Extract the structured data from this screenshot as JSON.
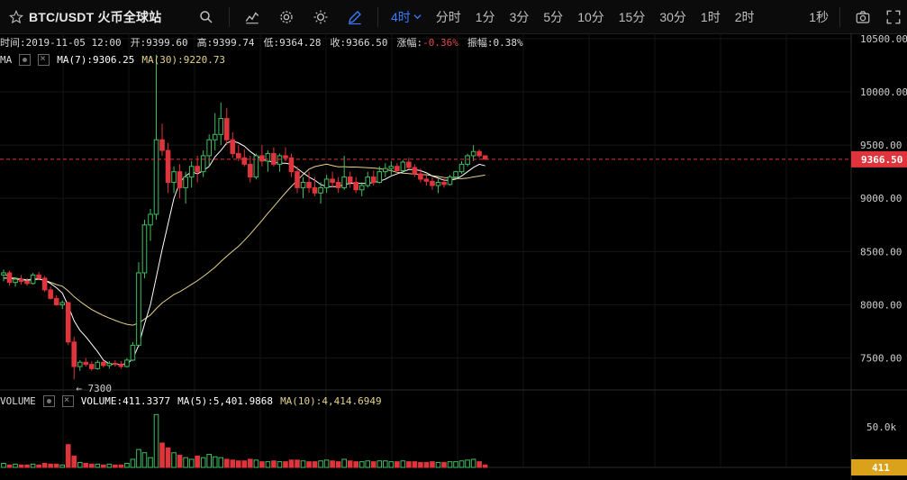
{
  "toolbar": {
    "symbol": "BTC/USDT 火币全球站",
    "active_interval": "4时",
    "intervals": [
      "分时",
      "1分",
      "3分",
      "5分",
      "10分",
      "15分",
      "30分",
      "1时",
      "2时"
    ],
    "right_interval": "1秒",
    "icons": [
      "star-icon",
      "search-icon",
      "indicator-icon",
      "settings-icon",
      "theme-icon",
      "draw-icon",
      "camera-icon",
      "fullscreen-icon"
    ]
  },
  "ohlc": {
    "time": "时间:2019-11-05 12:00",
    "open": "开:9399.60",
    "high": "高:9399.74",
    "low": "低:9364.28",
    "close": "收:9366.50",
    "change_label": "涨幅:",
    "change_value": "-0.36%",
    "amplitude": "振幅:0.38%"
  },
  "ma": {
    "label": "MA",
    "ma7": "MA(7):9306.25",
    "ma30": "MA(30):9220.73"
  },
  "volume": {
    "label": "VOLUME",
    "value": "VOLUME:411.3377",
    "ma5": "MA(5):5,401.9868",
    "ma10": "MA(10):4,414.6949"
  },
  "chart_data": {
    "type": "candlestick",
    "price_ticks": [
      "10500.00",
      "10000.00",
      "9500.00",
      "9000.00",
      "8500.00",
      "8000.00",
      "7500.00"
    ],
    "price_ylim": [
      7200,
      10550
    ],
    "last_price": "9366.50",
    "low_annotation": "← 7300",
    "volume_tick": "50.0k",
    "last_volume": "411",
    "colors": {
      "up": "#3fbf5f",
      "down": "#e0343c",
      "ma7": "#ffffff",
      "ma30": "#e6d28a",
      "last": "#e0343c",
      "vol_badge": "#d9a21a"
    },
    "candles": [
      [
        8280,
        8330,
        8220,
        8300
      ],
      [
        8300,
        8320,
        8180,
        8210
      ],
      [
        8210,
        8260,
        8170,
        8240
      ],
      [
        8240,
        8280,
        8190,
        8220
      ],
      [
        8220,
        8250,
        8180,
        8200
      ],
      [
        8200,
        8300,
        8190,
        8280
      ],
      [
        8280,
        8310,
        8230,
        8250
      ],
      [
        8250,
        8270,
        8120,
        8140
      ],
      [
        8140,
        8170,
        8050,
        8060
      ],
      [
        8060,
        8090,
        7990,
        8000
      ],
      [
        8000,
        8040,
        7960,
        8020
      ],
      [
        8020,
        8030,
        7620,
        7650
      ],
      [
        7650,
        7700,
        7300,
        7420
      ],
      [
        7420,
        7480,
        7380,
        7460
      ],
      [
        7460,
        7500,
        7420,
        7440
      ],
      [
        7440,
        7470,
        7380,
        7400
      ],
      [
        7400,
        7480,
        7390,
        7460
      ],
      [
        7460,
        7480,
        7410,
        7430
      ],
      [
        7430,
        7470,
        7400,
        7450
      ],
      [
        7450,
        7480,
        7420,
        7440
      ],
      [
        7440,
        7470,
        7400,
        7420
      ],
      [
        7420,
        7500,
        7410,
        7480
      ],
      [
        7480,
        7650,
        7470,
        7620
      ],
      [
        7620,
        8400,
        7600,
        8300
      ],
      [
        8300,
        8800,
        8250,
        8750
      ],
      [
        8750,
        8900,
        8600,
        8850
      ],
      [
        8850,
        10350,
        8800,
        9550
      ],
      [
        9550,
        9700,
        9400,
        9450
      ],
      [
        9450,
        9520,
        9050,
        9150
      ],
      [
        9150,
        9300,
        9050,
        9250
      ],
      [
        9250,
        9320,
        9000,
        9100
      ],
      [
        9100,
        9250,
        8950,
        9200
      ],
      [
        9200,
        9350,
        9100,
        9300
      ],
      [
        9300,
        9400,
        9150,
        9250
      ],
      [
        9250,
        9450,
        9200,
        9400
      ],
      [
        9400,
        9600,
        9300,
        9550
      ],
      [
        9550,
        9800,
        9450,
        9600
      ],
      [
        9600,
        9900,
        9500,
        9750
      ],
      [
        9750,
        9850,
        9500,
        9550
      ],
      [
        9550,
        9620,
        9380,
        9420
      ],
      [
        9420,
        9500,
        9350,
        9380
      ],
      [
        9380,
        9460,
        9300,
        9320
      ],
      [
        9320,
        9400,
        9150,
        9200
      ],
      [
        9200,
        9420,
        9180,
        9400
      ],
      [
        9400,
        9500,
        9300,
        9350
      ],
      [
        9350,
        9450,
        9250,
        9420
      ],
      [
        9420,
        9480,
        9300,
        9320
      ],
      [
        9320,
        9420,
        9250,
        9400
      ],
      [
        9400,
        9480,
        9350,
        9380
      ],
      [
        9380,
        9420,
        9200,
        9250
      ],
      [
        9250,
        9300,
        9050,
        9100
      ],
      [
        9100,
        9200,
        9000,
        9150
      ],
      [
        9150,
        9250,
        9050,
        9100
      ],
      [
        9100,
        9200,
        9020,
        9050
      ],
      [
        9050,
        9150,
        8950,
        9100
      ],
      [
        9100,
        9220,
        9050,
        9180
      ],
      [
        9180,
        9250,
        9100,
        9150
      ],
      [
        9150,
        9200,
        9050,
        9100
      ],
      [
        9100,
        9400,
        9080,
        9200
      ],
      [
        9200,
        9250,
        9100,
        9150
      ],
      [
        9150,
        9200,
        9050,
        9080
      ],
      [
        9080,
        9150,
        9020,
        9120
      ],
      [
        9120,
        9250,
        9100,
        9200
      ],
      [
        9200,
        9260,
        9120,
        9150
      ],
      [
        9150,
        9300,
        9140,
        9250
      ],
      [
        9250,
        9330,
        9200,
        9280
      ],
      [
        9280,
        9350,
        9220,
        9300
      ],
      [
        9300,
        9330,
        9230,
        9260
      ],
      [
        9260,
        9360,
        9240,
        9340
      ],
      [
        9340,
        9380,
        9270,
        9290
      ],
      [
        9290,
        9320,
        9200,
        9230
      ],
      [
        9230,
        9280,
        9150,
        9180
      ],
      [
        9180,
        9220,
        9120,
        9160
      ],
      [
        9160,
        9200,
        9080,
        9120
      ],
      [
        9120,
        9180,
        9050,
        9150
      ],
      [
        9150,
        9200,
        9100,
        9130
      ],
      [
        9130,
        9220,
        9120,
        9200
      ],
      [
        9200,
        9260,
        9180,
        9250
      ],
      [
        9250,
        9350,
        9230,
        9320
      ],
      [
        9320,
        9420,
        9300,
        9400
      ],
      [
        9400,
        9500,
        9350,
        9440
      ],
      [
        9440,
        9460,
        9380,
        9400
      ],
      [
        9399.6,
        9399.74,
        9364.28,
        9366.5
      ]
    ],
    "volumes": [
      5,
      3,
      4,
      3,
      3,
      4,
      3,
      5,
      4,
      4,
      3,
      28,
      14,
      6,
      5,
      4,
      4,
      3,
      4,
      3,
      3,
      5,
      10,
      22,
      18,
      12,
      65,
      30,
      24,
      18,
      15,
      12,
      10,
      14,
      12,
      16,
      13,
      12,
      10,
      9,
      8,
      8,
      10,
      9,
      7,
      7,
      8,
      7,
      7,
      9,
      9,
      8,
      7,
      7,
      8,
      9,
      8,
      7,
      10,
      8,
      7,
      7,
      8,
      7,
      8,
      8,
      7,
      7,
      8,
      7,
      7,
      6,
      6,
      7,
      6,
      6,
      7,
      7,
      8,
      9,
      10,
      7,
      3
    ],
    "ma7": [
      8250,
      8250,
      8240,
      8235,
      8230,
      8235,
      8240,
      8230,
      8200,
      8160,
      8110,
      7990,
      7850,
      7760,
      7700,
      7630,
      7560,
      7480,
      7445,
      7440,
      7440,
      7445,
      7490,
      7620,
      7820,
      8000,
      8260,
      8520,
      8760,
      9000,
      9150,
      9210,
      9250,
      9230,
      9260,
      9300,
      9390,
      9450,
      9520,
      9540,
      9520,
      9490,
      9440,
      9400,
      9370,
      9350,
      9340,
      9330,
      9330,
      9320,
      9280,
      9240,
      9200,
      9170,
      9130,
      9110,
      9110,
      9110,
      9130,
      9140,
      9140,
      9140,
      9140,
      9150,
      9160,
      9180,
      9210,
      9230,
      9250,
      9270,
      9270,
      9260,
      9240,
      9210,
      9190,
      9170,
      9170,
      9180,
      9210,
      9250,
      9290,
      9320,
      9306
    ]
  }
}
